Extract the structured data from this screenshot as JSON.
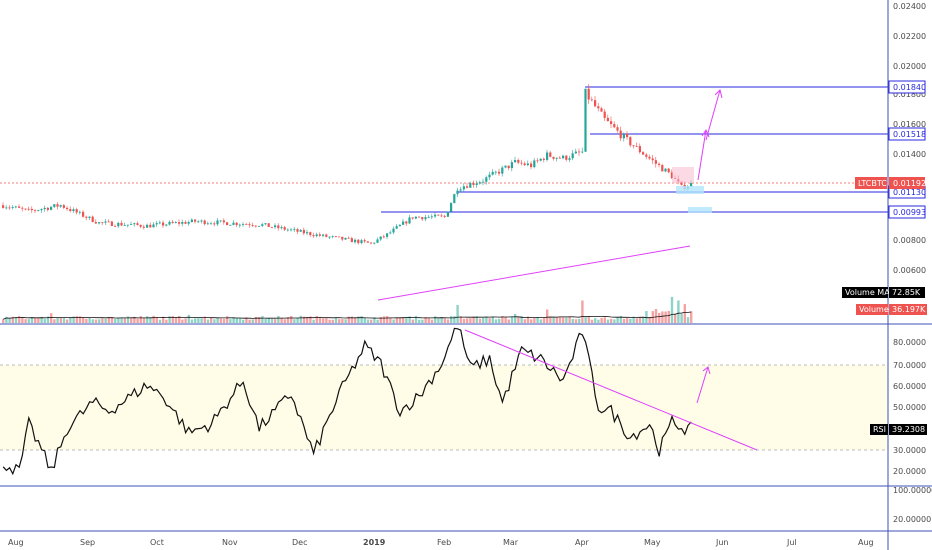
{
  "chart_data": [
    {
      "type": "candlestick",
      "symbol": "LTCBTC",
      "last_price": "0.01192",
      "ylim": [
        0.0054,
        0.0245
      ],
      "y_ticks": [
        "0.02400",
        "0.02200",
        "0.02000",
        "0.01800",
        "0.01600",
        "0.01400",
        "0.00800",
        "0.00600"
      ],
      "levels": [
        {
          "value": 0.0184,
          "label": "0.01840"
        },
        {
          "value": 0.01518,
          "label": "0.01518"
        },
        {
          "value": 0.0113,
          "label": "0.01130"
        },
        {
          "value": 0.00993,
          "label": "0.00993"
        }
      ],
      "x_labels": [
        "Aug",
        "Sep",
        "Oct",
        "Nov",
        "Dec",
        "2019",
        "Feb",
        "Mar",
        "Apr",
        "May",
        "Jun",
        "Jul",
        "Aug"
      ],
      "close_keypoints": [
        [
          0,
          0.0104
        ],
        [
          8,
          0.01
        ],
        [
          18,
          0.0104
        ],
        [
          30,
          0.0092
        ],
        [
          45,
          0.009
        ],
        [
          60,
          0.0093
        ],
        [
          80,
          0.0091
        ],
        [
          100,
          0.0083
        ],
        [
          115,
          0.0078
        ],
        [
          120,
          0.0084
        ],
        [
          128,
          0.0096
        ],
        [
          138,
          0.0096
        ],
        [
          142,
          0.0116
        ],
        [
          150,
          0.0121
        ],
        [
          160,
          0.0133
        ],
        [
          165,
          0.0131
        ],
        [
          170,
          0.0138
        ],
        [
          175,
          0.0136
        ],
        [
          181,
          0.014
        ],
        [
          182,
          0.018
        ],
        [
          188,
          0.0162
        ],
        [
          195,
          0.0148
        ],
        [
          203,
          0.0134
        ],
        [
          209,
          0.0124
        ],
        [
          212,
          0.0116
        ],
        [
          216,
          0.0119
        ]
      ]
    },
    {
      "type": "bar",
      "name": "Volume",
      "ma_label": "Volume MA",
      "ma_value": "72.85K",
      "last_value": "36.197K",
      "spikes": [
        [
          15,
          0.55
        ],
        [
          47,
          0.4
        ],
        [
          58,
          0.45
        ],
        [
          93,
          0.4
        ],
        [
          142,
          1.0
        ],
        [
          160,
          0.5
        ],
        [
          170,
          0.75
        ],
        [
          181,
          1.25
        ],
        [
          206,
          0.5
        ],
        [
          209,
          1.45
        ],
        [
          211,
          1.25
        ],
        [
          213,
          1.05
        ]
      ]
    },
    {
      "type": "line",
      "name": "RSI",
      "value": "39.2308",
      "ylim": [
        10,
        90
      ],
      "bands": [
        30,
        70
      ],
      "y_ticks": [
        "80.0000",
        "70.0000",
        "60.0000",
        "50.0000",
        "40.0000",
        "30.0000",
        "20.0000"
      ],
      "keypoints": [
        [
          0,
          24
        ],
        [
          5,
          20
        ],
        [
          8,
          42
        ],
        [
          12,
          30
        ],
        [
          15,
          20
        ],
        [
          20,
          40
        ],
        [
          28,
          52
        ],
        [
          33,
          48
        ],
        [
          45,
          60
        ],
        [
          50,
          55
        ],
        [
          58,
          38
        ],
        [
          65,
          42
        ],
        [
          75,
          62
        ],
        [
          80,
          40
        ],
        [
          90,
          56
        ],
        [
          97,
          28
        ],
        [
          105,
          56
        ],
        [
          113,
          78
        ],
        [
          118,
          70
        ],
        [
          124,
          48
        ],
        [
          130,
          55
        ],
        [
          137,
          70
        ],
        [
          142,
          88
        ],
        [
          146,
          68
        ],
        [
          152,
          72
        ],
        [
          156,
          52
        ],
        [
          162,
          76
        ],
        [
          168,
          72
        ],
        [
          175,
          62
        ],
        [
          181,
          85
        ],
        [
          186,
          50
        ],
        [
          190,
          48
        ],
        [
          196,
          36
        ],
        [
          202,
          42
        ],
        [
          205,
          30
        ],
        [
          207,
          36
        ],
        [
          209,
          43
        ],
        [
          213,
          40
        ]
      ]
    }
  ],
  "labels": {
    "price_tag": "LTCBTC",
    "price_value": "0.01192",
    "level_1": "0.01840",
    "level_2": "0.01518",
    "level_3": "0.01130",
    "level_4": "0.00993",
    "volume_ma_label": "Volume MA",
    "volume_ma_value": "72.85K",
    "volume_label": "Volume",
    "volume_value": "36.197K",
    "rsi_label": "RSI",
    "rsi_value": "39.2308",
    "bottom_tick_1": "100.00000",
    "bottom_tick_2": "20.00000"
  },
  "colors": {
    "up": "#26a69a",
    "down": "#ef5350",
    "volume_up": "#8fd3c7",
    "volume_down": "#f3a3a3",
    "level_line": "#2a2ae0",
    "trend_line": "#e040fb",
    "rsi_band_fill": "#fffde7",
    "price_tag_bg": "#ef5350",
    "axis": "#3f51b5"
  }
}
